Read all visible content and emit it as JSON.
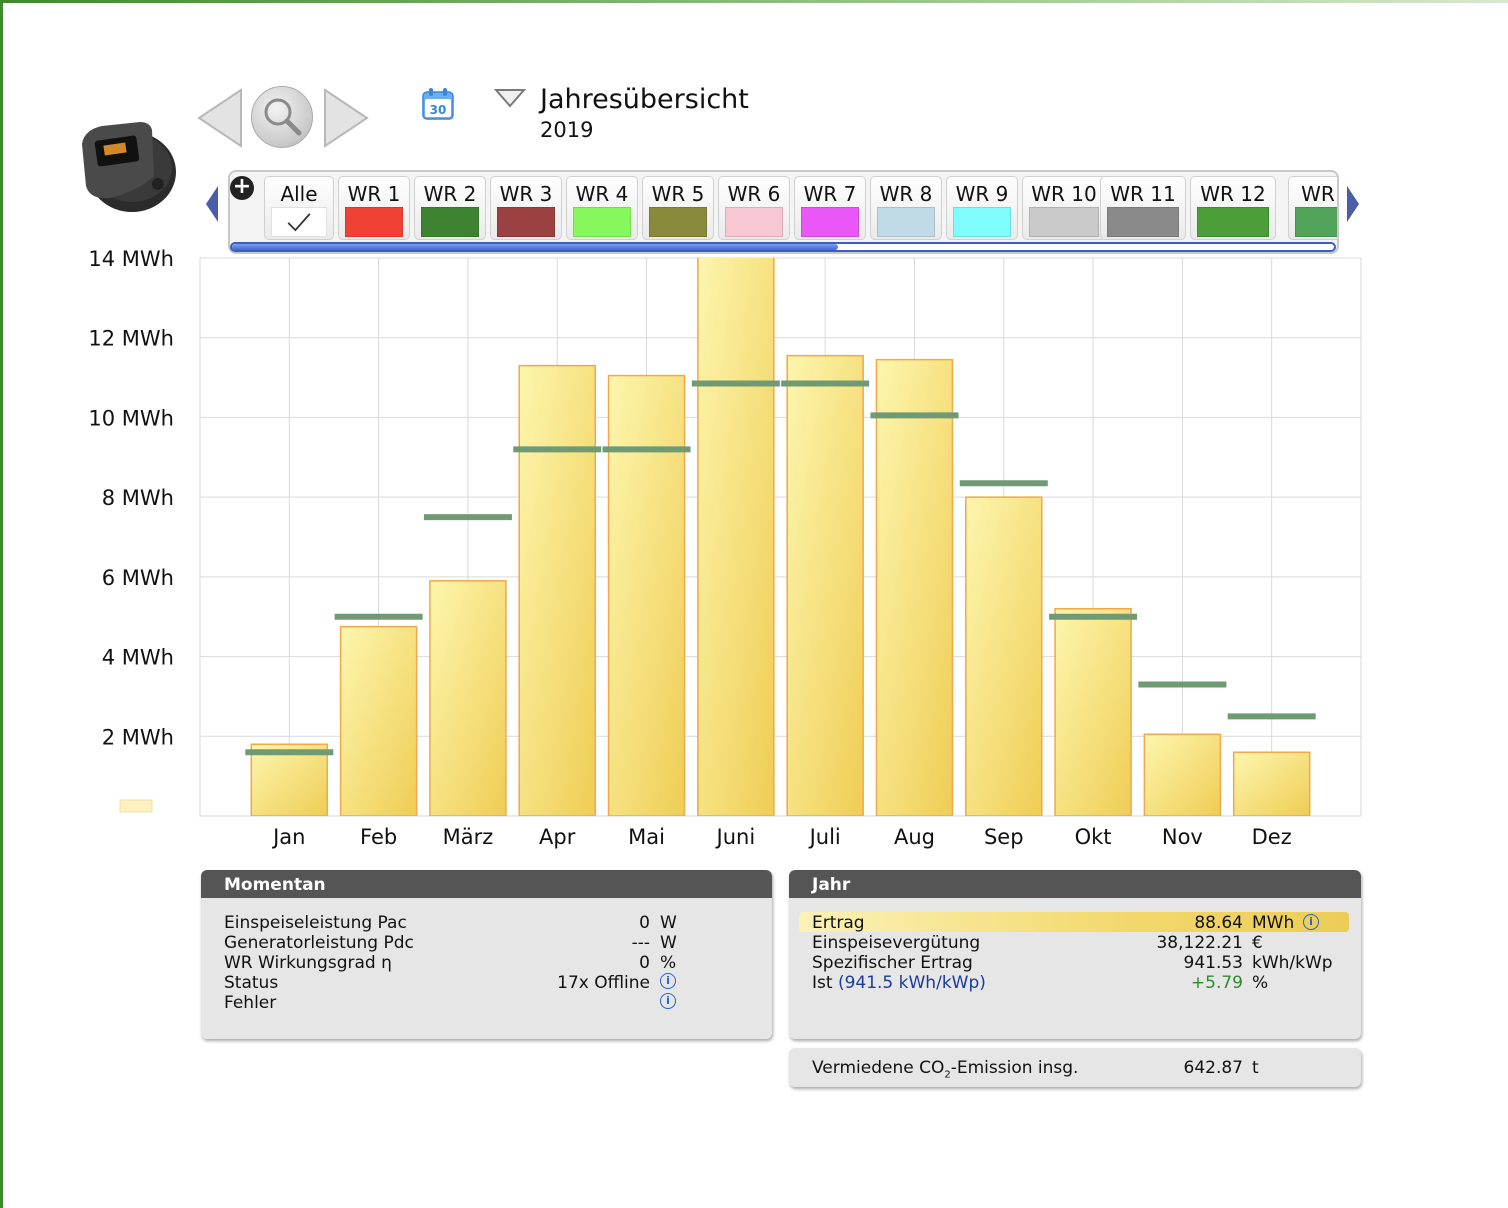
{
  "header": {
    "title": "Jahresübersicht",
    "subtitle": "2019",
    "calendar_day": "30"
  },
  "tabs": [
    {
      "label": "Alle",
      "color": null,
      "checked": true
    },
    {
      "label": "WR 1",
      "color": "#ef4234"
    },
    {
      "label": "WR 2",
      "color": "#3e8331"
    },
    {
      "label": "WR 3",
      "color": "#9c4141"
    },
    {
      "label": "WR 4",
      "color": "#86f85e"
    },
    {
      "label": "WR 5",
      "color": "#8a8a3c"
    },
    {
      "label": "WR 6",
      "color": "#f7c7d4"
    },
    {
      "label": "WR 7",
      "color": "#e957f6"
    },
    {
      "label": "WR 8",
      "color": "#c1dbe6"
    },
    {
      "label": "WR 9",
      "color": "#7ffdfd"
    },
    {
      "label": "WR 10",
      "color": "#cacaca"
    },
    {
      "label": "WR 11",
      "color": "#8a8a8a"
    },
    {
      "label": "WR 12",
      "color": "#4c9e39"
    },
    {
      "label": "WR",
      "color": "#52a45a"
    }
  ],
  "chart_data": {
    "type": "bar",
    "categories": [
      "Jan",
      "Feb",
      "März",
      "Apr",
      "Mai",
      "Juni",
      "Juli",
      "Aug",
      "Sep",
      "Okt",
      "Nov",
      "Dez"
    ],
    "series": [
      {
        "values": [
          1.8,
          4.75,
          5.9,
          11.3,
          11.05,
          14.3,
          11.55,
          11.45,
          8.0,
          5.2,
          2.05,
          1.6
        ]
      },
      {
        "values": [
          1.6,
          5.0,
          7.5,
          9.2,
          9.2,
          10.85,
          10.85,
          10.05,
          8.35,
          5.0,
          3.3,
          2.5
        ]
      }
    ],
    "ylim": [
      0,
      14
    ],
    "yticks": [
      2,
      4,
      6,
      8,
      10,
      12,
      14
    ],
    "ytick_labels": [
      "2 MWh",
      "4 MWh",
      "6 MWh",
      "8 MWh",
      "10 MWh",
      "12 MWh",
      "14 MWh"
    ],
    "grid": true,
    "colors": {
      "bar_fill_top": "#fdf6ae",
      "bar_fill_bottom": "#efcd55",
      "bar_stroke": "#f2a74a",
      "target": "#6f9a73"
    }
  },
  "momentan": {
    "title": "Momentan",
    "rows": [
      {
        "label": "Einspeiseleistung Pac",
        "value": "0",
        "unit": "W",
        "info": false
      },
      {
        "label": "Generatorleistung Pdc",
        "value": "---",
        "unit": "W",
        "info": false
      },
      {
        "label": "WR Wirkungsgrad η",
        "value": "0",
        "unit": "%",
        "info": false
      },
      {
        "label": "Status",
        "value": "17x Offline",
        "unit": "",
        "info": true
      },
      {
        "label": "Fehler",
        "value": "",
        "unit": "",
        "info": true
      }
    ]
  },
  "jahr": {
    "title": "Jahr",
    "rows": [
      {
        "label": "Ertrag",
        "value": "88.64",
        "unit": "MWh",
        "info": true
      },
      {
        "label": "Einspeisevergütung",
        "value": "38,122.21",
        "unit": "€"
      },
      {
        "label": "Spezifischer Ertrag",
        "value": "941.53",
        "unit": "kWh/kWp"
      },
      {
        "label": "Ist",
        "label_extra": "(941.5 kWh/kWp)",
        "value": "+5.79",
        "unit": "%"
      }
    ]
  },
  "co2": {
    "label_pre": "Vermiedene CO",
    "label_sub": "2",
    "label_post": "-Emission insg.",
    "value": "642.87",
    "unit": "t"
  }
}
